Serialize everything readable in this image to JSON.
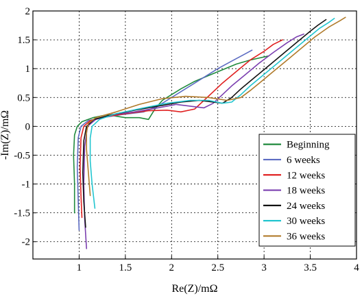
{
  "chart_data": {
    "type": "line",
    "xlabel": "Re(Z)/mΩ",
    "ylabel": "-Im(Z)/mΩ",
    "xlim": [
      0.5,
      4
    ],
    "ylim": [
      -2.3,
      2
    ],
    "x_ticks": [
      1,
      1.5,
      2,
      2.5,
      3,
      3.5,
      4
    ],
    "x_tick_labels": [
      "1",
      "1.5",
      "2",
      "2.5",
      "3",
      "3.5",
      "4"
    ],
    "y_ticks": [
      -2,
      -1.5,
      -1,
      -0.5,
      0,
      0.5,
      1,
      1.5,
      2
    ],
    "y_tick_labels": [
      "-2",
      "-1.5",
      "-1",
      "-0.5",
      "0",
      "0.5",
      "1",
      "1.5",
      "2"
    ],
    "grid": true,
    "legend_position": "lower-right",
    "series": [
      {
        "name": "Beginning",
        "color": "#1f8a3c",
        "x": [
          0.95,
          0.95,
          0.94,
          0.95,
          0.98,
          1.03,
          1.15,
          1.3,
          1.5,
          1.65,
          1.75,
          1.82,
          1.9,
          2.0,
          2.1,
          2.25,
          2.4,
          2.55,
          2.7,
          2.85,
          3.05
        ],
        "y": [
          -1.5,
          -1.0,
          -0.5,
          -0.15,
          0.0,
          0.08,
          0.15,
          0.2,
          0.15,
          0.15,
          0.12,
          0.3,
          0.45,
          0.55,
          0.65,
          0.78,
          0.88,
          0.98,
          1.08,
          1.15,
          1.22
        ]
      },
      {
        "name": "6 weeks",
        "color": "#5b6bc2",
        "x": [
          1.0,
          0.99,
          0.98,
          0.99,
          1.02,
          1.1,
          1.25,
          1.45,
          1.7,
          1.85,
          1.95,
          2.05,
          2.2,
          2.35,
          2.5,
          2.65,
          2.8,
          2.87
        ],
        "y": [
          -1.8,
          -1.3,
          -0.7,
          -0.2,
          0.0,
          0.1,
          0.15,
          0.2,
          0.25,
          0.35,
          0.45,
          0.55,
          0.7,
          0.85,
          1.0,
          1.13,
          1.26,
          1.32
        ]
      },
      {
        "name": "12 weeks",
        "color": "#e02020",
        "x": [
          1.03,
          1.02,
          1.01,
          1.02,
          1.05,
          1.12,
          1.3,
          1.5,
          1.75,
          1.95,
          2.1,
          2.25,
          2.35,
          2.45,
          2.55,
          2.7,
          2.85,
          3.0,
          3.1,
          3.2
        ],
        "y": [
          -1.58,
          -1.2,
          -0.7,
          -0.2,
          0.0,
          0.1,
          0.17,
          0.22,
          0.27,
          0.28,
          0.25,
          0.3,
          0.45,
          0.6,
          0.75,
          0.95,
          1.15,
          1.3,
          1.42,
          1.5
        ]
      },
      {
        "name": "18 weeks",
        "color": "#7b3fb0",
        "x": [
          1.08,
          1.06,
          1.05,
          1.06,
          1.09,
          1.18,
          1.35,
          1.6,
          1.85,
          2.05,
          2.2,
          2.35,
          2.45,
          2.55,
          2.65,
          2.8,
          2.95,
          3.1,
          3.25,
          3.35,
          3.43
        ],
        "y": [
          -2.12,
          -1.6,
          -1.0,
          -0.35,
          0.0,
          0.12,
          0.2,
          0.25,
          0.32,
          0.38,
          0.35,
          0.32,
          0.4,
          0.55,
          0.7,
          0.9,
          1.1,
          1.28,
          1.45,
          1.55,
          1.6
        ]
      },
      {
        "name": "24 weeks",
        "color": "#111111",
        "x": [
          1.07,
          1.05,
          1.04,
          1.05,
          1.08,
          1.16,
          1.35,
          1.6,
          1.85,
          2.1,
          2.3,
          2.45,
          2.55,
          2.65,
          2.75,
          2.9,
          3.05,
          3.2,
          3.35,
          3.5,
          3.58,
          3.67
        ],
        "y": [
          -1.75,
          -1.3,
          -0.8,
          -0.25,
          0.0,
          0.12,
          0.2,
          0.28,
          0.35,
          0.42,
          0.45,
          0.42,
          0.4,
          0.5,
          0.65,
          0.85,
          1.05,
          1.25,
          1.45,
          1.65,
          1.75,
          1.85
        ]
      },
      {
        "name": "30 weeks",
        "color": "#22c5cf",
        "x": [
          1.17,
          1.14,
          1.12,
          1.12,
          1.14,
          1.22,
          1.4,
          1.7,
          1.95,
          2.2,
          2.4,
          2.55,
          2.65,
          2.75,
          2.85,
          3.0,
          3.15,
          3.3,
          3.45,
          3.6,
          3.7,
          3.76
        ],
        "y": [
          -1.42,
          -1.0,
          -0.6,
          -0.2,
          0.0,
          0.12,
          0.22,
          0.32,
          0.4,
          0.45,
          0.45,
          0.4,
          0.42,
          0.55,
          0.7,
          0.9,
          1.1,
          1.3,
          1.5,
          1.7,
          1.8,
          1.87
        ]
      },
      {
        "name": "36 weeks",
        "color": "#b07a2a",
        "x": [
          1.12,
          1.1,
          1.08,
          1.08,
          1.1,
          1.18,
          1.4,
          1.65,
          1.9,
          2.15,
          2.4,
          2.6,
          2.75,
          2.85,
          2.95,
          3.1,
          3.25,
          3.4,
          3.55,
          3.7,
          3.82,
          3.88
        ],
        "y": [
          -1.2,
          -0.8,
          -0.4,
          -0.1,
          0.05,
          0.15,
          0.25,
          0.38,
          0.48,
          0.52,
          0.5,
          0.45,
          0.5,
          0.62,
          0.75,
          0.95,
          1.15,
          1.35,
          1.55,
          1.72,
          1.83,
          1.89
        ]
      }
    ]
  }
}
